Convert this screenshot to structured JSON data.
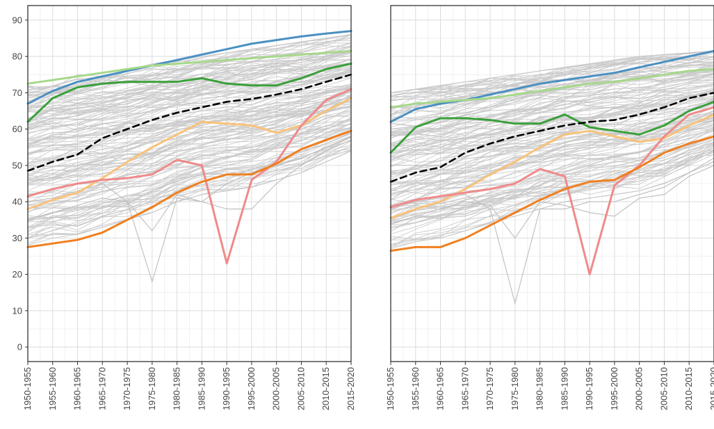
{
  "chart_data": [
    {
      "type": "line",
      "title": "",
      "xlabel": "",
      "ylabel": "",
      "ylim": [
        -4,
        94
      ],
      "yticks": [
        0,
        10,
        20,
        30,
        40,
        50,
        60,
        70,
        80,
        90
      ],
      "grid": true,
      "legend": "none",
      "categories": [
        "1950-1955",
        "1955-1960",
        "1960-1965",
        "1965-1970",
        "1970-1975",
        "1975-1980",
        "1980-1985",
        "1985-1990",
        "1990-1995",
        "1995-2000",
        "2000-2005",
        "2005-2010",
        "2010-2015",
        "2015-2020"
      ],
      "background_series": {
        "color": "#c8c8c8",
        "band_low": [
          28,
          30,
          31,
          33,
          35,
          37,
          40,
          42,
          43,
          44,
          46,
          48,
          51,
          54
        ],
        "band_high": [
          73,
          74,
          75,
          76,
          77,
          78,
          79,
          80,
          81,
          82,
          83,
          84,
          85,
          86
        ],
        "outliers": [
          [
            40,
            41,
            43,
            45,
            40,
            18,
            41,
            40,
            45,
            48,
            50,
            52,
            55,
            58
          ],
          [
            35,
            37,
            39,
            41,
            40,
            32,
            42,
            40,
            38,
            38,
            45,
            50,
            54,
            57
          ]
        ]
      },
      "series": [
        {
          "color": "#4a90c2",
          "values": [
            67,
            70.5,
            73,
            74.5,
            76,
            77.5,
            79,
            80.5,
            82,
            83.5,
            84.5,
            85.5,
            86.3,
            87
          ]
        },
        {
          "color": "#a6d88a",
          "values": [
            72.5,
            73.5,
            74.5,
            75.5,
            76.5,
            77.5,
            78,
            78.5,
            79,
            79.5,
            80,
            80.5,
            81,
            81.5
          ]
        },
        {
          "color": "#3aa03a",
          "values": [
            62,
            68.5,
            71.5,
            72.5,
            73,
            73,
            73,
            74,
            72.5,
            72,
            72,
            74,
            76.5,
            78
          ]
        },
        {
          "color": "#000000",
          "dashed": true,
          "values": [
            48.5,
            51,
            53,
            57.5,
            60,
            62.5,
            64.5,
            66,
            67.5,
            68.3,
            69.5,
            71,
            73,
            75
          ]
        },
        {
          "color": "#f8c27a",
          "values": [
            38,
            40.5,
            42.5,
            46.5,
            51,
            55,
            58.5,
            62,
            61.5,
            61,
            59,
            61,
            65,
            68.5
          ]
        },
        {
          "color": "#ef8a8a",
          "values": [
            41.5,
            43.5,
            45,
            46,
            46.5,
            47.5,
            51.5,
            50,
            23,
            46,
            51,
            61,
            68,
            71
          ]
        },
        {
          "color": "#f07f1f",
          "values": [
            27.5,
            28.5,
            29.5,
            31.5,
            35,
            38.5,
            42.5,
            45.5,
            47.5,
            47.5,
            50.5,
            54.5,
            57,
            59.5
          ]
        }
      ]
    },
    {
      "type": "line",
      "title": "",
      "xlabel": "",
      "ylabel": "",
      "ylim": [
        -4,
        94
      ],
      "grid": true,
      "legend": "none",
      "categories": [
        "1950-1955",
        "1955-1960",
        "1960-1965",
        "1965-1970",
        "1970-1975",
        "1975-1980",
        "1980-1985",
        "1985-1990",
        "1990-1995",
        "1995-2000",
        "2000-2005",
        "2005-2010",
        "2010-2015",
        "2015-2020"
      ],
      "background_series": {
        "color": "#c8c8c8",
        "band_low": [
          27,
          29,
          30,
          32,
          34,
          36,
          38,
          40,
          41,
          42,
          43,
          45,
          48,
          51
        ],
        "band_high": [
          70,
          71,
          72,
          73,
          74,
          75,
          76,
          77,
          78,
          79,
          80,
          80.5,
          81,
          81.5
        ],
        "outliers": [
          [
            38,
            40,
            41,
            42,
            38,
            12,
            38,
            38,
            40,
            40,
            42,
            44,
            48,
            52
          ],
          [
            34,
            36,
            38,
            40,
            39,
            30,
            40,
            39,
            37,
            36,
            41,
            42,
            47,
            50
          ]
        ]
      },
      "series": [
        {
          "color": "#4a90c2",
          "values": [
            62,
            65.5,
            67,
            68,
            69.5,
            71,
            72.5,
            73.5,
            74.5,
            75.5,
            77,
            78.5,
            80,
            81.5
          ]
        },
        {
          "color": "#a6d88a",
          "values": [
            66,
            67,
            67.5,
            68,
            68.5,
            69.5,
            70.5,
            71.5,
            72.5,
            73,
            74,
            75,
            76,
            76.5
          ]
        },
        {
          "color": "#3aa03a",
          "values": [
            53.5,
            60.5,
            63,
            63,
            62.5,
            61.5,
            61.5,
            64,
            60.5,
            59.5,
            58.5,
            61,
            65,
            67.5
          ]
        },
        {
          "color": "#000000",
          "dashed": true,
          "values": [
            45.5,
            48,
            49.5,
            53.5,
            56,
            58,
            59.5,
            61,
            62,
            62.5,
            64,
            66,
            68.5,
            70
          ]
        },
        {
          "color": "#f8c27a",
          "values": [
            35.5,
            38,
            40,
            43.5,
            47.5,
            51,
            55,
            58.5,
            59.5,
            58,
            56.5,
            57.5,
            61,
            64
          ]
        },
        {
          "color": "#ef8a8a",
          "values": [
            38.5,
            40.5,
            41.5,
            42.5,
            43.5,
            45,
            49,
            47,
            20,
            44.5,
            50,
            58,
            64,
            66
          ]
        },
        {
          "color": "#f07f1f",
          "values": [
            26.5,
            27.5,
            27.5,
            30,
            33.5,
            37,
            40.5,
            43.5,
            45.5,
            46,
            49.5,
            53.5,
            56,
            58
          ]
        }
      ]
    }
  ]
}
